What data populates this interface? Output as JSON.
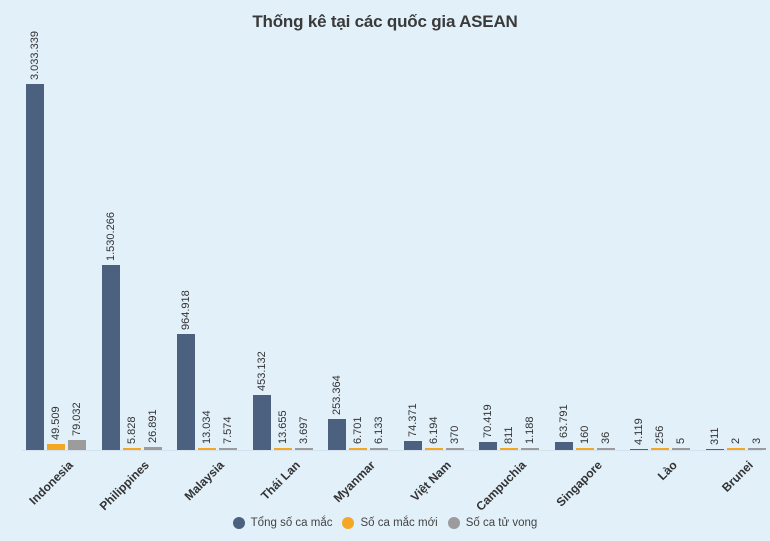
{
  "title": "Thống kê tại các quốc gia ASEAN",
  "colors": {
    "total": "#4b617f",
    "new": "#f4a724",
    "deaths": "#9c9c9c",
    "background": "#e2f0fa"
  },
  "legend": [
    {
      "label": "Tổng số ca mắc",
      "color": "#4b617f"
    },
    {
      "label": "Số ca mắc mới",
      "color": "#f4a724"
    },
    {
      "label": "Số ca tử vong",
      "color": "#9c9c9c"
    }
  ],
  "chart_data": {
    "type": "bar",
    "title": "Thống kê tại các quốc gia ASEAN",
    "xlabel": "",
    "ylabel": "",
    "grid": false,
    "legend_position": "bottom",
    "categories": [
      "Indonesia",
      "Philippines",
      "Malaysia",
      "Thái Lan",
      "Myanmar",
      "Việt Nam",
      "Campuchia",
      "Singapore",
      "Lào",
      "Brunei"
    ],
    "series": [
      {
        "name": "Tổng số ca mắc",
        "values": [
          3033339,
          1530266,
          964918,
          453132,
          253364,
          74371,
          70419,
          63791,
          4119,
          311
        ],
        "labels": [
          "3.033.339",
          "1.530.266",
          "964.918",
          "453.132",
          "253.364",
          "74.371",
          "70.419",
          "63.791",
          "4.119",
          "311"
        ]
      },
      {
        "name": "Số ca mắc mới",
        "values": [
          49509,
          5828,
          13034,
          13655,
          6701,
          6194,
          811,
          160,
          256,
          2
        ],
        "labels": [
          "49.509",
          "5.828",
          "13.034",
          "13.655",
          "6.701",
          "6.194",
          "811",
          "160",
          "256",
          "2"
        ]
      },
      {
        "name": "Số ca tử vong",
        "values": [
          79032,
          26891,
          7574,
          3697,
          6133,
          370,
          1188,
          36,
          5,
          3
        ],
        "labels": [
          "79.032",
          "26.891",
          "7.574",
          "3.697",
          "6.133",
          "370",
          "1.188",
          "36",
          "5",
          "3"
        ]
      }
    ],
    "ylim": [
      0,
      3033339
    ]
  }
}
